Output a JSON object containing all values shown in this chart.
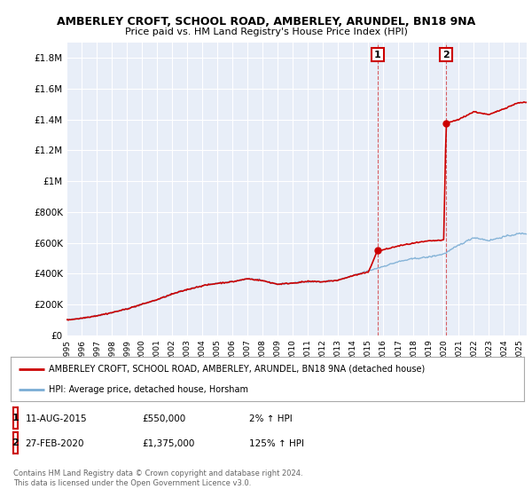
{
  "title": "AMBERLEY CROFT, SCHOOL ROAD, AMBERLEY, ARUNDEL, BN18 9NA",
  "subtitle": "Price paid vs. HM Land Registry's House Price Index (HPI)",
  "ylabel_ticks": [
    "£0",
    "£200K",
    "£400K",
    "£600K",
    "£800K",
    "£1M",
    "£1.2M",
    "£1.4M",
    "£1.6M",
    "£1.8M"
  ],
  "ytick_values": [
    0,
    200000,
    400000,
    600000,
    800000,
    1000000,
    1200000,
    1400000,
    1600000,
    1800000
  ],
  "ylim": [
    0,
    1900000
  ],
  "xlim_start": 1995.0,
  "xlim_end": 2025.5,
  "xtick_years": [
    1995,
    1996,
    1997,
    1998,
    1999,
    2000,
    2001,
    2002,
    2003,
    2004,
    2005,
    2006,
    2007,
    2008,
    2009,
    2010,
    2011,
    2012,
    2013,
    2014,
    2015,
    2016,
    2017,
    2018,
    2019,
    2020,
    2021,
    2022,
    2023,
    2024,
    2025
  ],
  "hpi_color": "#7aadd4",
  "property_color": "#cc0000",
  "sale1_x": 2015.62,
  "sale1_y": 550000,
  "sale2_x": 2020.15,
  "sale2_y": 1375000,
  "vline1_x": 2015.62,
  "vline2_x": 2020.15,
  "legend_property": "AMBERLEY CROFT, SCHOOL ROAD, AMBERLEY, ARUNDEL, BN18 9NA (detached house)",
  "legend_hpi": "HPI: Average price, detached house, Horsham",
  "note1_label": "1",
  "note1_date": "11-AUG-2015",
  "note1_price": "£550,000",
  "note1_hpi": "2% ↑ HPI",
  "note2_label": "2",
  "note2_date": "27-FEB-2020",
  "note2_price": "£1,375,000",
  "note2_hpi": "125% ↑ HPI",
  "footer": "Contains HM Land Registry data © Crown copyright and database right 2024.\nThis data is licensed under the Open Government Licence v3.0.",
  "background_color": "#ffffff",
  "plot_bg_color": "#e8eef8"
}
